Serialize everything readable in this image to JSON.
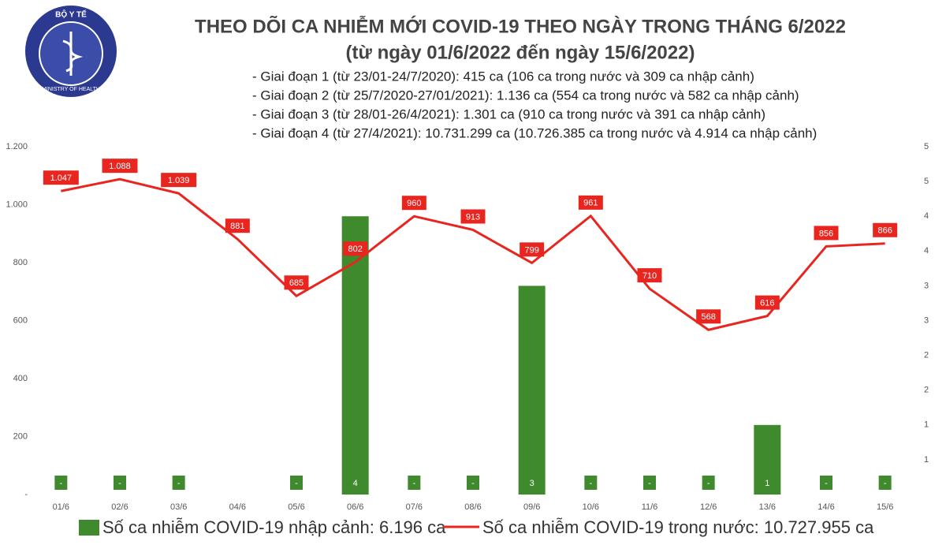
{
  "logo": {
    "top": "BỘ Y TẾ",
    "bottom": "MINISTRY OF HEALTH"
  },
  "chart_data": {
    "type": "bar-line",
    "title": "THEO DÕI CA NHIỄM MỚI COVID-19 THEO NGÀY TRONG THÁNG 6/2022",
    "subtitle": "(từ ngày 01/6/2022 đến ngày 15/6/2022)",
    "notes": [
      "- Giai đoạn 1 (từ 23/01-24/7/2020): 415 ca (106 ca trong nước và 309 ca nhập cảnh)",
      "- Giai đoạn 2 (từ 25/7/2020-27/01/2021): 1.136 ca (554 ca trong nước và 582 ca nhập cảnh)",
      "- Giai đoạn 3 (từ 28/01-26/4/2021): 1.301 ca (910 ca trong nước và 391 ca nhập cảnh)",
      "- Giai đoạn 4 (từ 27/4/2021): 10.731.299 ca (10.726.385 ca trong nước và 4.914 ca nhập cảnh)"
    ],
    "categories": [
      "01/6",
      "02/6",
      "03/6",
      "04/6",
      "05/6",
      "06/6",
      "07/6",
      "08/6",
      "09/6",
      "10/6",
      "11/6",
      "12/6",
      "13/6",
      "14/6",
      "15/6"
    ],
    "series": [
      {
        "name": "Số ca nhiễm COVID-19 nhập cảnh: 6.196 ca",
        "type": "bar",
        "axis": "y2",
        "color": "#3f8a2c",
        "values": [
          0,
          0,
          0,
          null,
          0,
          4,
          0,
          0,
          3,
          0,
          0,
          0,
          1,
          0,
          0
        ],
        "value_labels": [
          "-",
          "-",
          "-",
          null,
          "-",
          "4",
          "-",
          "-",
          "3",
          "-",
          "-",
          "-",
          "1",
          "-",
          "-"
        ]
      },
      {
        "name": "Số ca nhiễm COVID-19 trong nước: 10.727.955 ca",
        "type": "line",
        "color": "#e8251f",
        "values": [
          1047,
          1088,
          1039,
          881,
          685,
          802,
          960,
          913,
          799,
          961,
          710,
          568,
          616,
          856,
          866
        ],
        "value_labels": [
          "1.047",
          "1.088",
          "1.039",
          "881",
          "685",
          "802",
          "960",
          "913",
          "799",
          "961",
          "710",
          "568",
          "616",
          "856",
          "866"
        ]
      }
    ],
    "ylim": [
      0,
      1200
    ],
    "yticks": [
      {
        "value": 0,
        "label": "-"
      },
      200,
      400,
      600,
      800,
      {
        "value": 1000,
        "label": "1.000"
      },
      {
        "value": 1200,
        "label": "1.200"
      }
    ],
    "y2lim": [
      0,
      5
    ],
    "y2ticks": [
      {
        "value": 0.5,
        "label": "1"
      },
      1,
      {
        "value": 1.5,
        "label": "2"
      },
      2,
      {
        "value": 2.5,
        "label": "3"
      },
      3,
      {
        "value": 3.5,
        "label": "4"
      },
      4,
      {
        "value": 4.5,
        "label": "5"
      },
      5
    ]
  }
}
